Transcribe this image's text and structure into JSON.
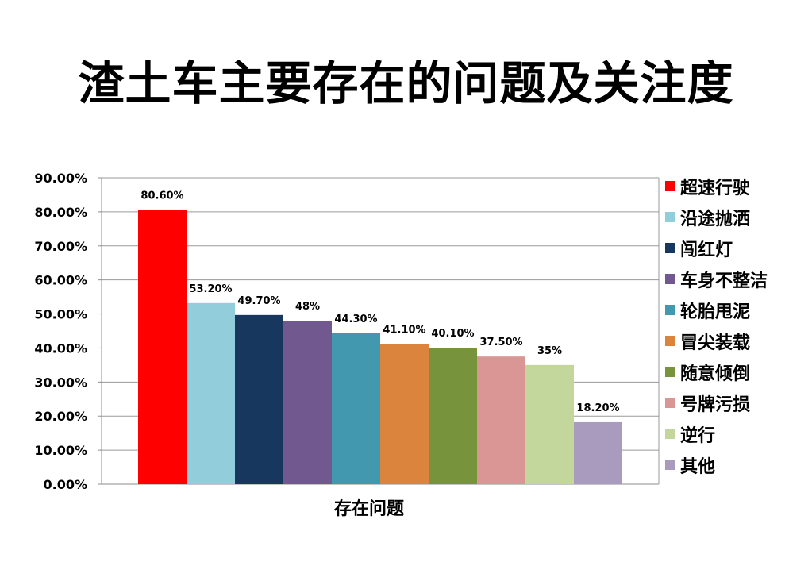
{
  "chart_data": {
    "type": "bar",
    "title": "渣土车主要存在的问题及关注度",
    "xlabel": "存在问题",
    "ylabel": "",
    "ylim": [
      0,
      90
    ],
    "yticks": [
      0,
      10,
      20,
      30,
      40,
      50,
      60,
      70,
      80,
      90
    ],
    "ytick_labels": [
      "0.00%",
      "10.00%",
      "20.00%",
      "30.00%",
      "40.00%",
      "50.00%",
      "60.00%",
      "70.00%",
      "80.00%",
      "90.00%"
    ],
    "grid": true,
    "legend_position": "right",
    "series": [
      {
        "name": "超速行驶",
        "value": 80.6,
        "label": "80.60%",
        "color": "#ff0000"
      },
      {
        "name": "沿途抛洒",
        "value": 53.2,
        "label": "53.20%",
        "color": "#92cddc"
      },
      {
        "name": "闯红灯",
        "value": 49.7,
        "label": "49.70%",
        "color": "#17375e"
      },
      {
        "name": "车身不整洁",
        "value": 48,
        "label": "48%",
        "color": "#71588f"
      },
      {
        "name": "轮胎甩泥",
        "value": 44.3,
        "label": "44.30%",
        "color": "#4198af"
      },
      {
        "name": "冒尖装载",
        "value": 41.1,
        "label": "41.10%",
        "color": "#db843d"
      },
      {
        "name": "随意倾倒",
        "value": 40.1,
        "label": "40.10%",
        "color": "#77933c"
      },
      {
        "name": "号牌污损",
        "value": 37.5,
        "label": "37.50%",
        "color": "#d99694"
      },
      {
        "name": "逆行",
        "value": 35,
        "label": "35%",
        "color": "#c3d69b"
      },
      {
        "name": "其他",
        "value": 18.2,
        "label": "18.20%",
        "color": "#a99bbd"
      }
    ]
  }
}
